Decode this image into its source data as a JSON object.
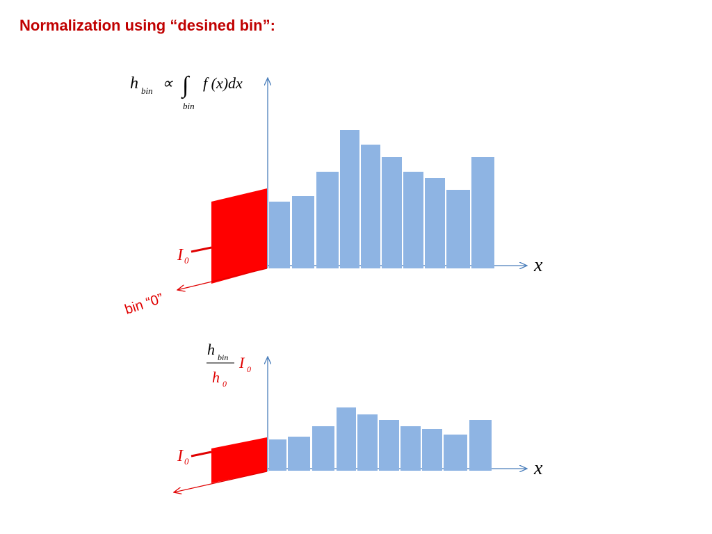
{
  "title": "Normalization using “desined bin”:",
  "top": {
    "formula": {
      "h": "h",
      "h_sub": "bin",
      "prop": "∝",
      "integral": "∫",
      "int_sub": "bin",
      "integrand": "f (x)dx"
    },
    "x_label": "x",
    "i0": {
      "base": "I",
      "sub": "0"
    },
    "bin0_label": "bin “0”"
  },
  "bottom": {
    "formula": {
      "num": "h",
      "num_sub": "bin",
      "den": "h",
      "den_sub": "0",
      "factor": "I",
      "factor_sub": "0"
    },
    "x_label": "x",
    "i0": {
      "base": "I",
      "sub": "0"
    }
  }
}
